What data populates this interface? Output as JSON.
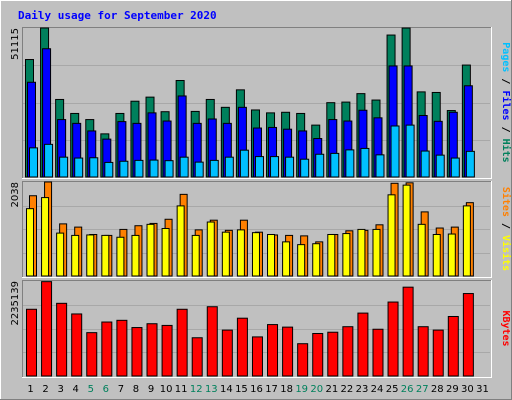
{
  "chart_data": [
    {
      "type": "bar",
      "title": "Daily usage for September 2020",
      "ylabel": "Pages / Files / Hits",
      "ylabel_parts": [
        "Pages",
        "Files",
        "Hits"
      ],
      "ymax_label": "51115",
      "ylim": [
        0,
        51115
      ],
      "grid": true,
      "categories": [
        "1",
        "2",
        "3",
        "4",
        "5",
        "6",
        "7",
        "8",
        "9",
        "10",
        "11",
        "12",
        "13",
        "14",
        "15",
        "16",
        "17",
        "18",
        "19",
        "20",
        "21",
        "22",
        "23",
        "24",
        "25",
        "26",
        "27",
        "28",
        "29",
        "30",
        "31"
      ],
      "series": [
        {
          "name": "Hits",
          "values": [
            40300,
            51115,
            26600,
            21800,
            19700,
            14800,
            21800,
            26000,
            27400,
            22400,
            33100,
            22500,
            26600,
            23900,
            29900,
            23000,
            22000,
            22200,
            21800,
            17800,
            25500,
            25700,
            28600,
            26400,
            48700,
            51100,
            29200,
            29000,
            22800,
            38400,
            0
          ]
        },
        {
          "name": "Files",
          "values": [
            32500,
            44000,
            19700,
            18400,
            15800,
            13000,
            19000,
            18400,
            22000,
            19200,
            27800,
            18400,
            19900,
            18400,
            23900,
            16800,
            17000,
            16400,
            15800,
            13200,
            19700,
            19200,
            22900,
            20300,
            38100,
            38100,
            21100,
            19100,
            22200,
            31300,
            0
          ]
        },
        {
          "name": "Pages",
          "values": [
            10000,
            11200,
            6800,
            6500,
            6600,
            5000,
            5400,
            5700,
            5800,
            5600,
            6800,
            5100,
            5700,
            6800,
            9200,
            7000,
            7000,
            6800,
            6100,
            7800,
            8100,
            9300,
            9800,
            7600,
            17500,
            17800,
            8900,
            7500,
            6500,
            8800,
            0
          ]
        }
      ],
      "colors": {
        "Hits": "#00805C",
        "Files": "#0000FF",
        "Pages": "#00C0FF"
      }
    },
    {
      "type": "bar",
      "ylabel": "Sites / Visits",
      "ylabel_parts": [
        "Sites",
        "Visits"
      ],
      "ymax_label": "2038",
      "ylim": [
        0,
        2038
      ],
      "grid": true,
      "categories": [
        "1",
        "2",
        "3",
        "4",
        "5",
        "6",
        "7",
        "8",
        "9",
        "10",
        "11",
        "12",
        "13",
        "14",
        "15",
        "16",
        "17",
        "18",
        "19",
        "20",
        "21",
        "22",
        "23",
        "24",
        "25",
        "26",
        "27",
        "28",
        "29",
        "30",
        "31"
      ],
      "series": [
        {
          "name": "Visits",
          "values": [
            1740,
            2038,
            1130,
            1060,
            900,
            880,
            1010,
            1090,
            1140,
            1230,
            1770,
            1000,
            1210,
            990,
            1210,
            950,
            890,
            880,
            870,
            740,
            900,
            980,
            990,
            1110,
            2010,
            2020,
            1390,
            1040,
            1060,
            1590,
            0
          ]
        },
        {
          "name": "Sites",
          "values": [
            1460,
            1700,
            930,
            880,
            890,
            880,
            840,
            880,
            1120,
            1030,
            1520,
            880,
            1170,
            950,
            1000,
            940,
            900,
            740,
            680,
            700,
            900,
            920,
            1010,
            1010,
            1760,
            1970,
            1120,
            900,
            910,
            1520,
            0
          ]
        }
      ],
      "colors": {
        "Visits": "#FF8000",
        "Sites": "#FFFF00"
      }
    },
    {
      "type": "bar",
      "ylabel": "KBytes",
      "ymax_label": "2235139",
      "ylim": [
        0,
        2235139
      ],
      "grid": true,
      "categories": [
        "1",
        "2",
        "3",
        "4",
        "5",
        "6",
        "7",
        "8",
        "9",
        "10",
        "11",
        "12",
        "13",
        "14",
        "15",
        "16",
        "17",
        "18",
        "19",
        "20",
        "21",
        "22",
        "23",
        "24",
        "25",
        "26",
        "27",
        "28",
        "29",
        "30",
        "31"
      ],
      "series": [
        {
          "name": "KBytes",
          "values": [
            1570000,
            2220000,
            1710000,
            1460000,
            1020000,
            1270000,
            1310000,
            1140000,
            1230000,
            1190000,
            1570000,
            900000,
            1630000,
            1080000,
            1360000,
            920000,
            1210000,
            1150000,
            760000,
            1000000,
            1030000,
            1160000,
            1480000,
            1100000,
            1740000,
            2090000,
            1160000,
            1080000,
            1400000,
            1940000,
            0
          ]
        }
      ],
      "colors": {
        "KBytes": "#FF0000"
      }
    }
  ],
  "x_axis": {
    "labels": [
      "1",
      "2",
      "3",
      "4",
      "5",
      "6",
      "7",
      "8",
      "9",
      "10",
      "11",
      "12",
      "13",
      "14",
      "15",
      "16",
      "17",
      "18",
      "19",
      "20",
      "21",
      "22",
      "23",
      "24",
      "25",
      "26",
      "27",
      "28",
      "29",
      "30",
      "31"
    ],
    "weekend_days": [
      "5",
      "6",
      "12",
      "13",
      "19",
      "20",
      "26",
      "27"
    ],
    "weekday_color": "#000000",
    "weekend_color": "#00805C"
  },
  "theme": {
    "background": "#C0C0C0",
    "plot_background": "#C0C0C0",
    "title_color": "#0000FF",
    "axis_text_color": "#000000",
    "separator_color": "#000000",
    "label_pages_color": "#00C0FF",
    "label_files_color": "#0000FF",
    "label_hits_color": "#00805C",
    "label_sites_color": "#FF8000",
    "label_visits_color": "#FFFF00",
    "label_kbytes_color": "#FF0000"
  }
}
